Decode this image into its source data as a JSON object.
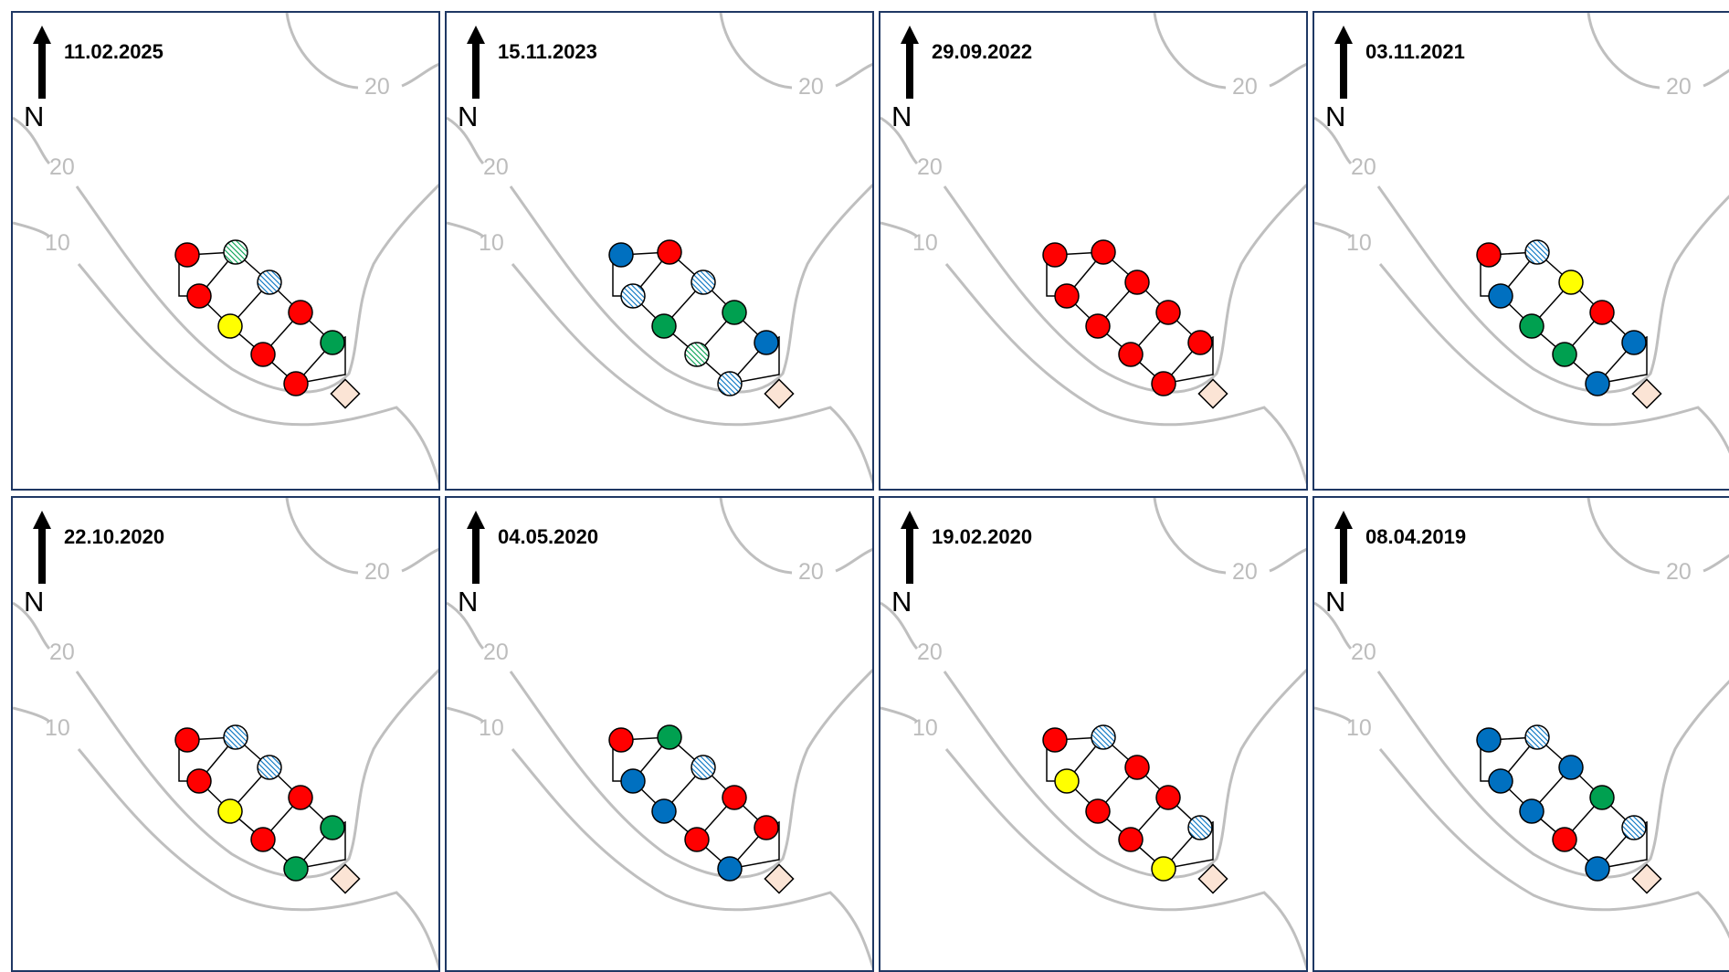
{
  "north_label": "N",
  "contour_labels": [
    "20",
    "20",
    "10"
  ],
  "colors": {
    "red": "#ff0000",
    "blue": "#0070c0",
    "green": "#00a050",
    "yellow": "#ffff00",
    "border": "#1f3864",
    "contour": "#bfbfbf",
    "diamond_fill": "#fbe4d5"
  },
  "legend_codes": [
    "R = red",
    "B = blue",
    "G = green",
    "Y = yellow",
    "b = blue hatched",
    "g = green hatched"
  ],
  "panels": [
    {
      "date": "11.02.2025",
      "dots": [
        "R",
        "g",
        "R",
        "b",
        "Y",
        "R",
        "R",
        "G",
        "R"
      ]
    },
    {
      "date": "15.11.2023",
      "dots": [
        "B",
        "R",
        "b",
        "b",
        "G",
        "G",
        "g",
        "B",
        "b"
      ]
    },
    {
      "date": "29.09.2022",
      "dots": [
        "R",
        "R",
        "R",
        "R",
        "R",
        "R",
        "R",
        "R",
        "R"
      ]
    },
    {
      "date": "03.11.2021",
      "dots": [
        "R",
        "b",
        "B",
        "Y",
        "G",
        "R",
        "G",
        "B",
        "B"
      ]
    },
    {
      "date": "22.10.2020",
      "dots": [
        "R",
        "b",
        "R",
        "b",
        "Y",
        "R",
        "R",
        "G",
        "G"
      ]
    },
    {
      "date": "04.05.2020",
      "dots": [
        "R",
        "G",
        "B",
        "b",
        "B",
        "R",
        "R",
        "R",
        "B"
      ]
    },
    {
      "date": "19.02.2020",
      "dots": [
        "R",
        "b",
        "Y",
        "R",
        "R",
        "R",
        "R",
        "b",
        "Y"
      ]
    },
    {
      "date": "08.04.2019",
      "dots": [
        "B",
        "b",
        "B",
        "B",
        "B",
        "G",
        "R",
        "b",
        "B"
      ]
    }
  ]
}
